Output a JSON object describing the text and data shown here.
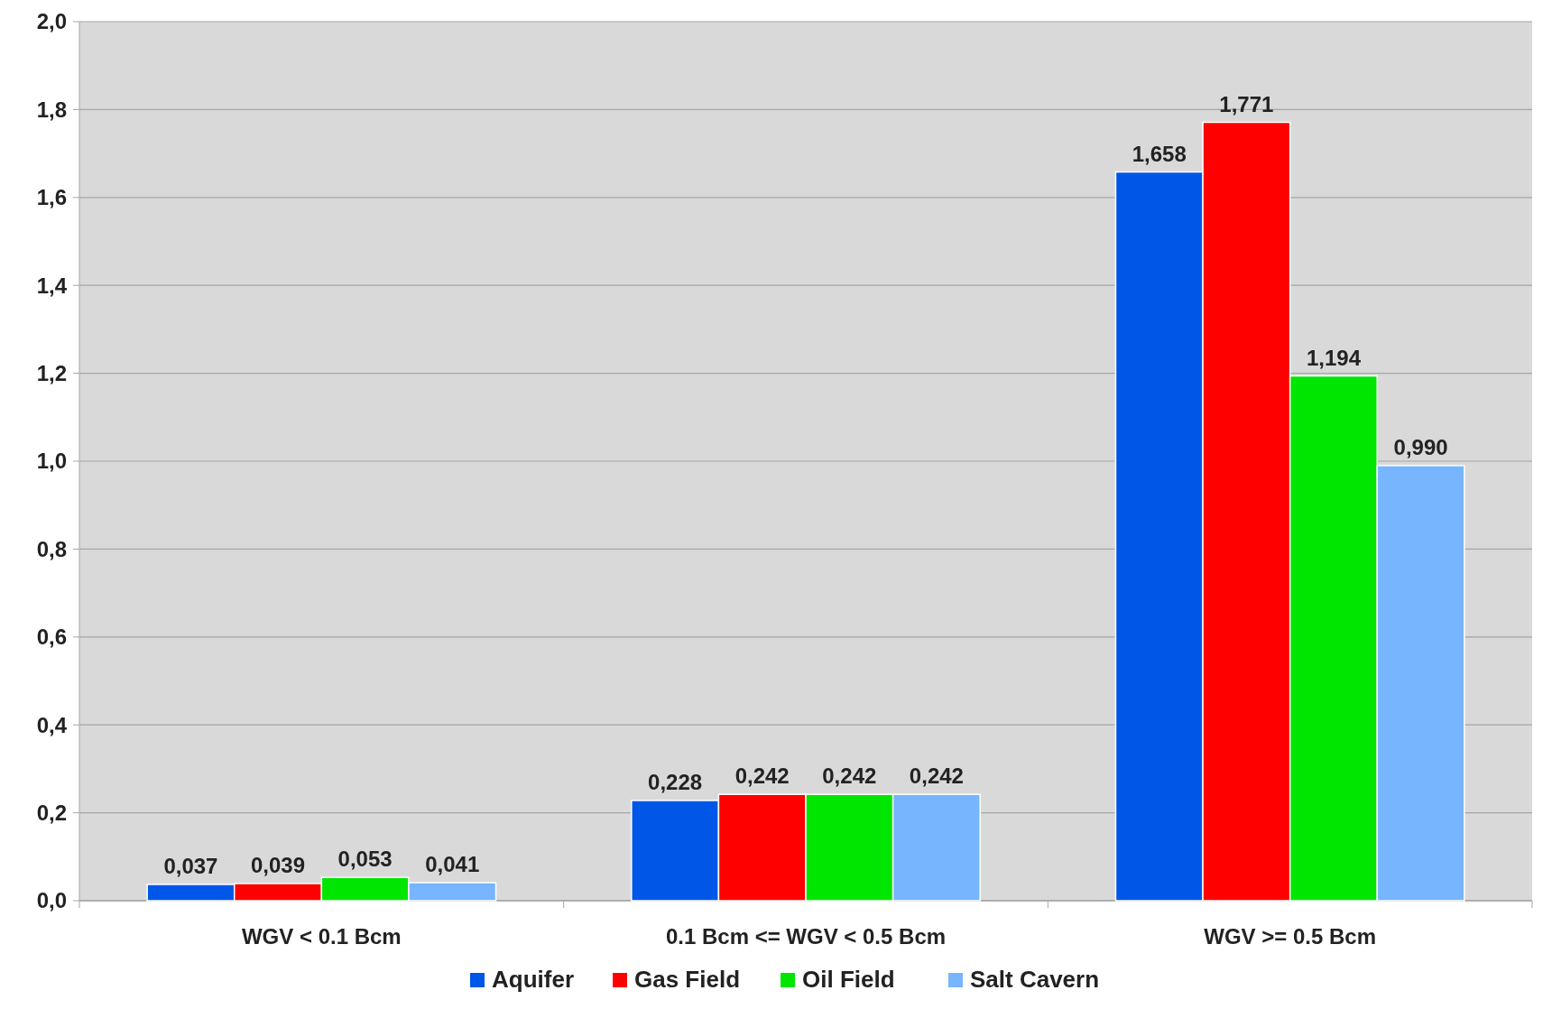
{
  "chart_data": {
    "type": "bar",
    "categories": [
      "WGV < 0.1 Bcm",
      "0.1 Bcm <= WGV < 0.5 Bcm",
      "WGV >= 0.5 Bcm"
    ],
    "series": [
      {
        "name": "Aquifer",
        "color": "#0057e7",
        "values": [
          0.037,
          0.228,
          1.658
        ],
        "value_labels": [
          "0,037",
          "0,228",
          "1,658"
        ]
      },
      {
        "name": "Gas Field",
        "color": "#ff0000",
        "values": [
          0.039,
          0.242,
          1.771
        ],
        "value_labels": [
          "0,039",
          "0,242",
          "1,771"
        ]
      },
      {
        "name": "Oil Field",
        "color": "#00e600",
        "values": [
          0.053,
          0.242,
          1.194
        ],
        "value_labels": [
          "0,053",
          "0,242",
          "1,194"
        ]
      },
      {
        "name": "Salt Cavern",
        "color": "#77b5fe",
        "values": [
          0.041,
          0.242,
          0.99
        ],
        "value_labels": [
          "0,041",
          "0,242",
          "0,990"
        ]
      }
    ],
    "ylim": [
      0,
      2
    ],
    "yticks": [
      {
        "value": 0,
        "label": "0,0"
      },
      {
        "value": 0.2,
        "label": "0,2"
      },
      {
        "value": 0.4,
        "label": "0,4"
      },
      {
        "value": 0.6,
        "label": "0,6"
      },
      {
        "value": 0.8,
        "label": "0,8"
      },
      {
        "value": 1,
        "label": "1,0"
      },
      {
        "value": 1.2,
        "label": "1,2"
      },
      {
        "value": 1.4,
        "label": "1,4"
      },
      {
        "value": 1.6,
        "label": "1,6"
      },
      {
        "value": 1.8,
        "label": "1,8"
      },
      {
        "value": 2,
        "label": "2,0"
      }
    ],
    "grid": "y",
    "legend": "bottom"
  }
}
